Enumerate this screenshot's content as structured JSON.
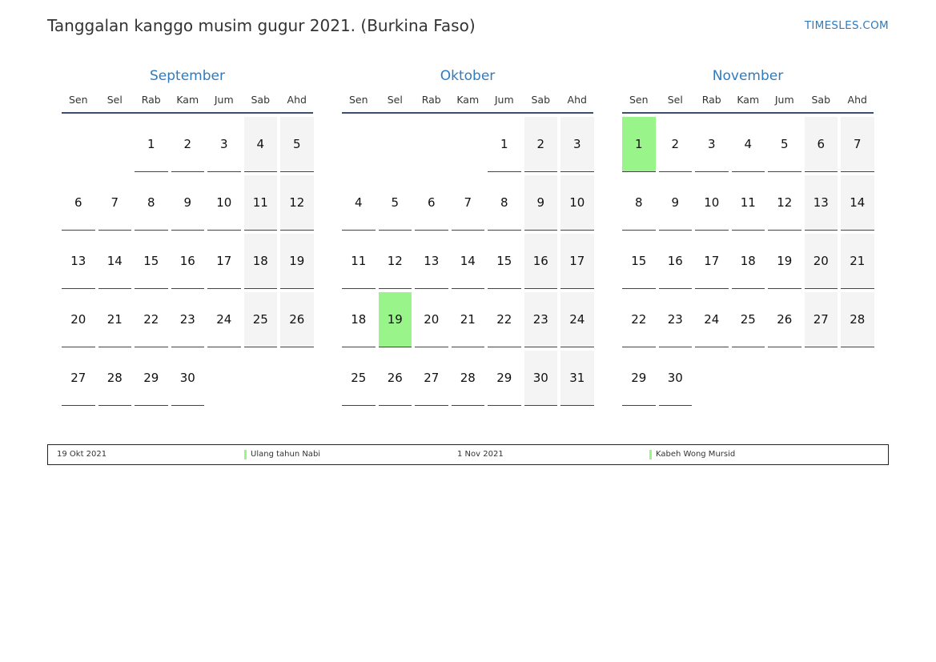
{
  "header": {
    "title": "Tanggalan kanggo musim gugur 2021. (Burkina Faso)",
    "site": "TIMESLES.COM"
  },
  "weekdays": [
    "Sen",
    "Sel",
    "Rab",
    "Kam",
    "Jum",
    "Sab",
    "Ahd"
  ],
  "colors": {
    "accent": "#2f7bbf",
    "holiday": "#99f58a",
    "weekend": "#f4f4f4",
    "rule": "#3d4f6e"
  },
  "months": [
    {
      "name": "September",
      "weeks": [
        [
          "",
          "",
          "1",
          "2",
          "3",
          "4",
          "5"
        ],
        [
          "6",
          "7",
          "8",
          "9",
          "10",
          "11",
          "12"
        ],
        [
          "13",
          "14",
          "15",
          "16",
          "17",
          "18",
          "19"
        ],
        [
          "20",
          "21",
          "22",
          "23",
          "24",
          "25",
          "26"
        ],
        [
          "27",
          "28",
          "29",
          "30",
          "",
          "",
          ""
        ]
      ],
      "holidays": []
    },
    {
      "name": "Oktober",
      "weeks": [
        [
          "",
          "",
          "",
          "",
          "1",
          "2",
          "3"
        ],
        [
          "4",
          "5",
          "6",
          "7",
          "8",
          "9",
          "10"
        ],
        [
          "11",
          "12",
          "13",
          "14",
          "15",
          "16",
          "17"
        ],
        [
          "18",
          "19",
          "20",
          "21",
          "22",
          "23",
          "24"
        ],
        [
          "25",
          "26",
          "27",
          "28",
          "29",
          "30",
          "31"
        ]
      ],
      "holidays": [
        "19"
      ]
    },
    {
      "name": "November",
      "weeks": [
        [
          "1",
          "2",
          "3",
          "4",
          "5",
          "6",
          "7"
        ],
        [
          "8",
          "9",
          "10",
          "11",
          "12",
          "13",
          "14"
        ],
        [
          "15",
          "16",
          "17",
          "18",
          "19",
          "20",
          "21"
        ],
        [
          "22",
          "23",
          "24",
          "25",
          "26",
          "27",
          "28"
        ],
        [
          "29",
          "30",
          "",
          "",
          "",
          "",
          ""
        ]
      ],
      "holidays": [
        "1"
      ]
    }
  ],
  "legend": [
    {
      "date": "19 Okt 2021",
      "name": "Ulang tahun Nabi"
    },
    {
      "date": "1 Nov 2021",
      "name": "Kabeh Wong Mursid"
    }
  ]
}
